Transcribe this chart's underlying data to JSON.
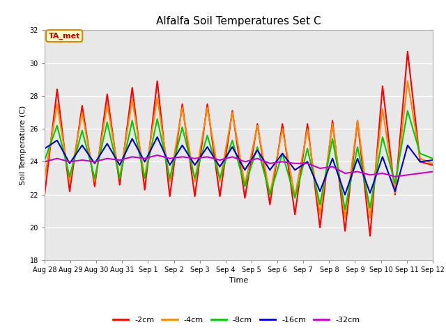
{
  "title": "Alfalfa Soil Temperatures Set C",
  "xlabel": "Time",
  "ylabel": "Soil Temperature (C)",
  "ylim": [
    18,
    32
  ],
  "xlim": [
    0,
    15
  ],
  "background_color": "#e8e8e8",
  "figure_background": "#ffffff",
  "grid_color": "#ffffff",
  "annotation_text": "TA_met",
  "annotation_bg": "#ffffcc",
  "annotation_border": "#cc8800",
  "annotation_fg": "#cc0000",
  "legend_labels": [
    "-2cm",
    "-4cm",
    "-8cm",
    "-16cm",
    "-32cm"
  ],
  "line_colors": [
    "#ff0000",
    "#ff8800",
    "#00cc00",
    "#0000cc",
    "#cc00cc"
  ],
  "line_widths": [
    1.5,
    1.5,
    1.5,
    1.5,
    1.5
  ],
  "tick_labels": [
    "Aug 28",
    "Aug 29",
    "Aug 30",
    "Aug 31",
    "Sep 1",
    "Sep 2",
    "Sep 3",
    "Sep 4",
    "Sep 5",
    "Sep 6",
    "Sep 7",
    "Sep 8",
    "Sep 9",
    "Sep 10",
    "Sep 11",
    "Sep 12"
  ],
  "tick_positions": [
    0,
    1,
    2,
    3,
    4,
    5,
    6,
    7,
    8,
    9,
    10,
    11,
    12,
    13,
    14,
    15
  ],
  "yticks": [
    18,
    20,
    22,
    24,
    26,
    28,
    30,
    32
  ],
  "series_2cm": [
    22.0,
    28.4,
    22.2,
    27.4,
    22.5,
    28.1,
    22.6,
    28.5,
    22.3,
    28.9,
    21.9,
    27.5,
    21.9,
    27.5,
    21.9,
    27.1,
    21.8,
    26.3,
    21.4,
    26.3,
    20.8,
    26.3,
    20.0,
    26.5,
    19.8,
    26.5,
    19.5,
    28.6,
    22.0,
    30.7,
    24.0,
    23.8
  ],
  "series_4cm": [
    23.0,
    27.5,
    22.8,
    27.0,
    22.8,
    27.5,
    23.0,
    27.8,
    23.0,
    27.9,
    22.8,
    27.3,
    22.8,
    27.3,
    22.8,
    27.0,
    22.6,
    26.2,
    22.0,
    26.0,
    21.9,
    26.0,
    20.8,
    26.3,
    20.6,
    26.5,
    20.6,
    27.2,
    22.1,
    28.9,
    24.2,
    23.9
  ],
  "series_8cm": [
    24.1,
    26.2,
    23.1,
    25.9,
    23.0,
    26.4,
    23.0,
    26.5,
    23.0,
    26.6,
    23.0,
    26.1,
    23.0,
    25.6,
    23.0,
    25.3,
    22.5,
    24.9,
    22.0,
    24.5,
    21.8,
    24.8,
    21.4,
    25.4,
    21.1,
    24.9,
    21.2,
    25.5,
    22.7,
    27.1,
    24.5,
    24.2
  ],
  "series_16cm": [
    24.8,
    25.3,
    23.9,
    25.0,
    23.9,
    25.1,
    23.8,
    25.4,
    24.0,
    25.5,
    23.8,
    25.0,
    23.8,
    24.9,
    23.7,
    24.9,
    23.5,
    24.7,
    23.5,
    24.5,
    23.5,
    24.0,
    22.2,
    24.2,
    22.0,
    24.2,
    22.1,
    24.3,
    22.2,
    25.0,
    24.0,
    24.1
  ],
  "series_32cm": [
    24.0,
    24.2,
    24.0,
    24.1,
    24.0,
    24.2,
    24.1,
    24.3,
    24.2,
    24.4,
    24.2,
    24.3,
    24.2,
    24.3,
    24.1,
    24.3,
    24.0,
    24.2,
    23.9,
    24.0,
    23.9,
    23.9,
    23.6,
    23.7,
    23.3,
    23.4,
    23.2,
    23.3,
    23.1,
    23.2,
    23.3,
    23.4
  ],
  "title_fontsize": 11,
  "axis_label_fontsize": 8,
  "tick_fontsize": 7,
  "legend_fontsize": 8
}
